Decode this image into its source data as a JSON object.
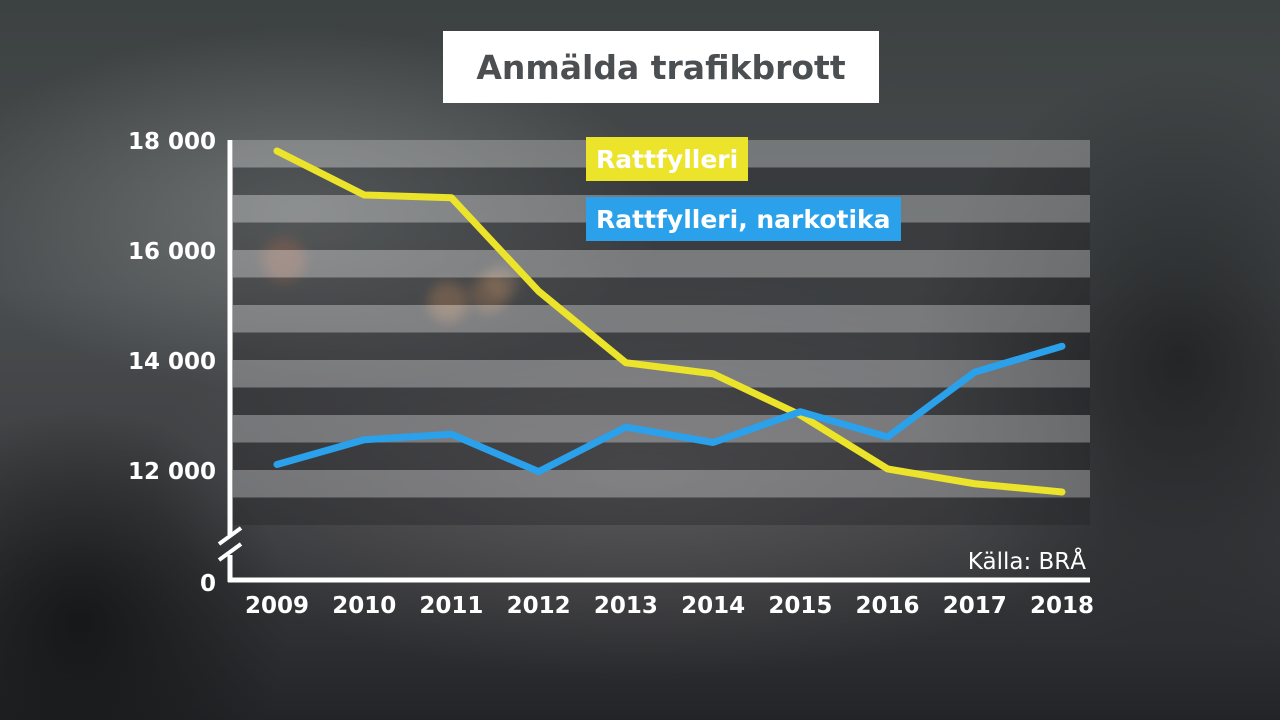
{
  "chart_data": {
    "type": "line",
    "title": "Anmälda trafikbrott",
    "source": "Källa: BRÅ",
    "x": [
      "2009",
      "2010",
      "2011",
      "2012",
      "2013",
      "2014",
      "2015",
      "2016",
      "2017",
      "2018"
    ],
    "ytick_labels": [
      "0",
      "12 000",
      "14 000",
      "16 000",
      "18 000"
    ],
    "ylim": [
      11000,
      18000
    ],
    "axis_break": true,
    "series": [
      {
        "name": "Rattfylleri",
        "color": "#ece32b",
        "values": [
          17800,
          17000,
          16950,
          15250,
          13950,
          13750,
          13000,
          12020,
          11750,
          11600
        ]
      },
      {
        "name": "Rattfylleri, narkotika",
        "color": "#2aa1ea",
        "values": [
          12100,
          12550,
          12650,
          11970,
          12780,
          12500,
          13060,
          12600,
          13780,
          14250
        ]
      }
    ]
  }
}
